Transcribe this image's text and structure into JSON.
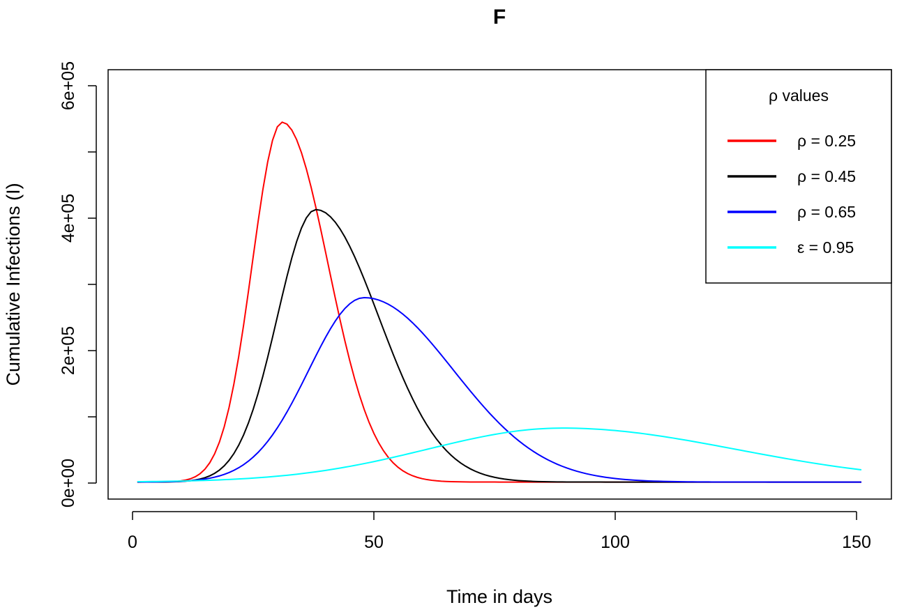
{
  "chart_data": {
    "type": "line",
    "title": "F",
    "xlabel": "Time in days",
    "ylabel": "Cumulative Infections (I)",
    "xlim": [
      1,
      151
    ],
    "ylim": [
      0,
      600000
    ],
    "x_ticks": [
      0,
      50,
      100,
      150
    ],
    "x_tick_labels": [
      "0",
      "50",
      "100",
      "150"
    ],
    "y_ticks": [
      0,
      100000,
      200000,
      300000,
      400000,
      500000,
      600000
    ],
    "y_tick_labels": [
      "0e+00",
      "",
      "2e+05",
      "",
      "4e+05",
      "",
      "6e+05"
    ],
    "grid": false,
    "legend": {
      "title": "ρ values",
      "position": "top-right",
      "entries": [
        {
          "label": "ρ = 0.25",
          "color": "#ff0000"
        },
        {
          "label": "ρ = 0.45",
          "color": "#000000"
        },
        {
          "label": "ρ = 0.65",
          "color": "#0000ff"
        },
        {
          "label": "ε = 0.95",
          "color": "#00ffff"
        }
      ]
    },
    "series": [
      {
        "name": "ρ = 0.25",
        "color": "#ff0000",
        "peak_x": 31,
        "peak_y": 545000,
        "sigma_left": 6.2,
        "sigma_right": 9.5,
        "base_y": 1500
      },
      {
        "name": "ρ = 0.45",
        "color": "#000000",
        "peak_x": 38,
        "peak_y": 413000,
        "sigma_left": 8.0,
        "sigma_right": 13.0,
        "base_y": 1500
      },
      {
        "name": "ρ = 0.65",
        "color": "#0000ff",
        "peak_x": 48,
        "peak_y": 280000,
        "sigma_left": 11.5,
        "sigma_right": 18.5,
        "base_y": 1500
      },
      {
        "name": "ε = 0.95",
        "color": "#00ffff",
        "peak_x": 89,
        "peak_y": 83000,
        "sigma_left": 28.0,
        "sigma_right": 36.0,
        "base_y": 1500
      }
    ]
  }
}
